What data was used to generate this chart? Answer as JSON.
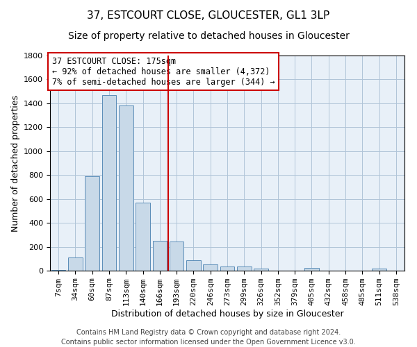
{
  "title1": "37, ESTCOURT CLOSE, GLOUCESTER, GL1 3LP",
  "title2": "Size of property relative to detached houses in Gloucester",
  "xlabel": "Distribution of detached houses by size in Gloucester",
  "ylabel": "Number of detached properties",
  "bar_labels": [
    "7sqm",
    "34sqm",
    "60sqm",
    "87sqm",
    "113sqm",
    "140sqm",
    "166sqm",
    "193sqm",
    "220sqm",
    "246sqm",
    "273sqm",
    "299sqm",
    "326sqm",
    "352sqm",
    "379sqm",
    "405sqm",
    "432sqm",
    "458sqm",
    "485sqm",
    "511sqm",
    "538sqm"
  ],
  "bar_values": [
    5,
    110,
    790,
    1470,
    1380,
    570,
    250,
    245,
    90,
    55,
    35,
    35,
    20,
    0,
    0,
    25,
    0,
    0,
    0,
    18,
    0
  ],
  "bar_color": "#c8d9e8",
  "bar_edge_color": "#5b8db8",
  "vline_color": "#cc0000",
  "annotation_text": "37 ESTCOURT CLOSE: 175sqm\n← 92% of detached houses are smaller (4,372)\n7% of semi-detached houses are larger (344) →",
  "annotation_box_color": "#ffffff",
  "annotation_box_edge": "#cc0000",
  "ylim": [
    0,
    1800
  ],
  "yticks": [
    0,
    200,
    400,
    600,
    800,
    1000,
    1200,
    1400,
    1600,
    1800
  ],
  "grid_color": "#b0c4d8",
  "background_color": "#e8f0f8",
  "footer": "Contains HM Land Registry data © Crown copyright and database right 2024.\nContains public sector information licensed under the Open Government Licence v3.0.",
  "title1_fontsize": 11,
  "title2_fontsize": 10,
  "xlabel_fontsize": 9,
  "ylabel_fontsize": 9,
  "tick_fontsize": 8,
  "annotation_fontsize": 8.5,
  "footer_fontsize": 7
}
